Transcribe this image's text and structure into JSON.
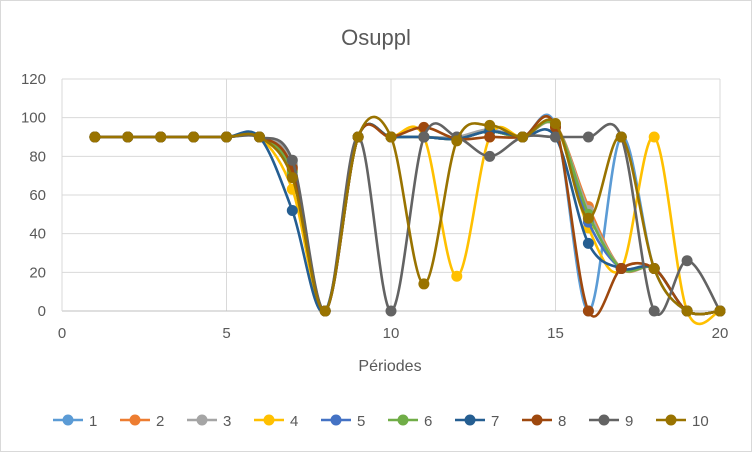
{
  "chart_data": {
    "type": "line",
    "title": "Osuppl",
    "subtitle": "",
    "xlabel": "Périodes",
    "ylabel": "",
    "xlim": [
      0,
      20
    ],
    "ylim": [
      0,
      120
    ],
    "xticks": [
      0,
      5,
      10,
      15,
      20
    ],
    "yticks": [
      0,
      20,
      40,
      60,
      80,
      100,
      120
    ],
    "grid": true,
    "legend": "bottom",
    "x": [
      1,
      2,
      3,
      4,
      5,
      6,
      7,
      8,
      9,
      10,
      11,
      12,
      13,
      14,
      15,
      16,
      17,
      18,
      19,
      20
    ],
    "series": [
      {
        "name": "1",
        "color": "#5b9bd5",
        "values": [
          90,
          90,
          90,
          90,
          90,
          90,
          75,
          0,
          90,
          90,
          90,
          89,
          93,
          90,
          96,
          0,
          90,
          22,
          0,
          0
        ]
      },
      {
        "name": "2",
        "color": "#ed7d31",
        "values": [
          90,
          90,
          90,
          90,
          90,
          90,
          73,
          0,
          90,
          90,
          90,
          89,
          93,
          90,
          96,
          54,
          22,
          22,
          0,
          0
        ]
      },
      {
        "name": "3",
        "color": "#a5a5a5",
        "values": [
          90,
          90,
          90,
          90,
          90,
          90,
          76,
          0,
          90,
          90,
          90,
          90,
          94,
          90,
          96,
          52,
          22,
          22,
          0,
          0
        ]
      },
      {
        "name": "4",
        "color": "#ffc000",
        "values": [
          90,
          90,
          90,
          90,
          90,
          90,
          63,
          0,
          90,
          90,
          90,
          18,
          90,
          90,
          96,
          43,
          22,
          90,
          0,
          0
        ]
      },
      {
        "name": "5",
        "color": "#4472c4",
        "values": [
          90,
          90,
          90,
          90,
          90,
          90,
          70,
          0,
          90,
          90,
          90,
          89,
          93,
          90,
          96,
          46,
          22,
          22,
          0,
          0
        ]
      },
      {
        "name": "6",
        "color": "#70ad47",
        "values": [
          90,
          90,
          90,
          90,
          90,
          90,
          72,
          0,
          90,
          90,
          90,
          89,
          93,
          90,
          96,
          50,
          22,
          22,
          0,
          0
        ]
      },
      {
        "name": "7",
        "color": "#255e91",
        "values": [
          90,
          90,
          90,
          90,
          90,
          90,
          52,
          0,
          90,
          90,
          90,
          89,
          93,
          90,
          90,
          35,
          22,
          22,
          0,
          0
        ]
      },
      {
        "name": "8",
        "color": "#9e480e",
        "values": [
          90,
          90,
          90,
          90,
          90,
          90,
          74,
          0,
          90,
          90,
          95,
          89,
          90,
          90,
          95,
          0,
          22,
          22,
          0,
          0
        ]
      },
      {
        "name": "9",
        "color": "#636363",
        "values": [
          90,
          90,
          90,
          90,
          90,
          90,
          78,
          0,
          90,
          0,
          90,
          90,
          80,
          90,
          90,
          90,
          90,
          0,
          26,
          0
        ]
      },
      {
        "name": "10",
        "color": "#997300",
        "values": [
          90,
          90,
          90,
          90,
          90,
          90,
          69,
          0,
          90,
          90,
          14,
          88,
          96,
          90,
          97,
          48,
          90,
          22,
          0,
          0
        ]
      }
    ]
  }
}
